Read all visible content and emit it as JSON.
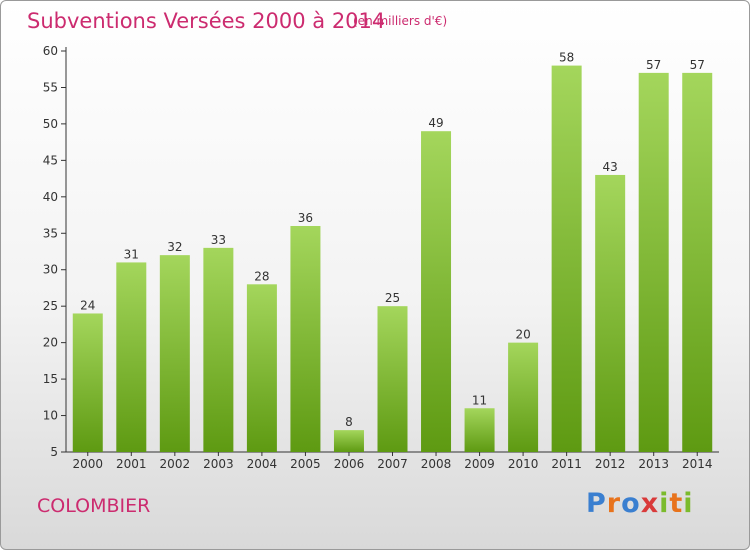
{
  "header": {
    "title": "Subventions Versées 2000 à 2014",
    "subtitle": "(en milliers d'€)"
  },
  "footer": {
    "city": "COLOMBIER",
    "logo_text": "Proxiti",
    "logo_colors": [
      "#3a7fd0",
      "#e8731c",
      "#3a7fd0",
      "#d93a3a",
      "#7bbb2c",
      "#e8731c",
      "#7bbb2c"
    ]
  },
  "colors": {
    "title": "#cc2b6f",
    "bar_top": "#a4d65c",
    "bar_bottom": "#5e9a12",
    "axis": "#333333"
  },
  "chart_data": {
    "type": "bar",
    "title": "Subventions Versées 2000 à 2014",
    "subtitle": "(en milliers d'€)",
    "xlabel": "",
    "ylabel": "",
    "categories": [
      "2000",
      "2001",
      "2002",
      "2003",
      "2004",
      "2005",
      "2006",
      "2007",
      "2008",
      "2009",
      "2010",
      "2011",
      "2012",
      "2013",
      "2014"
    ],
    "values": [
      24,
      31,
      32,
      33,
      28,
      36,
      8,
      25,
      49,
      11,
      20,
      58,
      43,
      57,
      57
    ],
    "ylim": [
      5,
      60
    ],
    "yticks": [
      5,
      10,
      15,
      20,
      25,
      30,
      35,
      40,
      45,
      50,
      55,
      60
    ],
    "grid": false,
    "legend": "none"
  }
}
